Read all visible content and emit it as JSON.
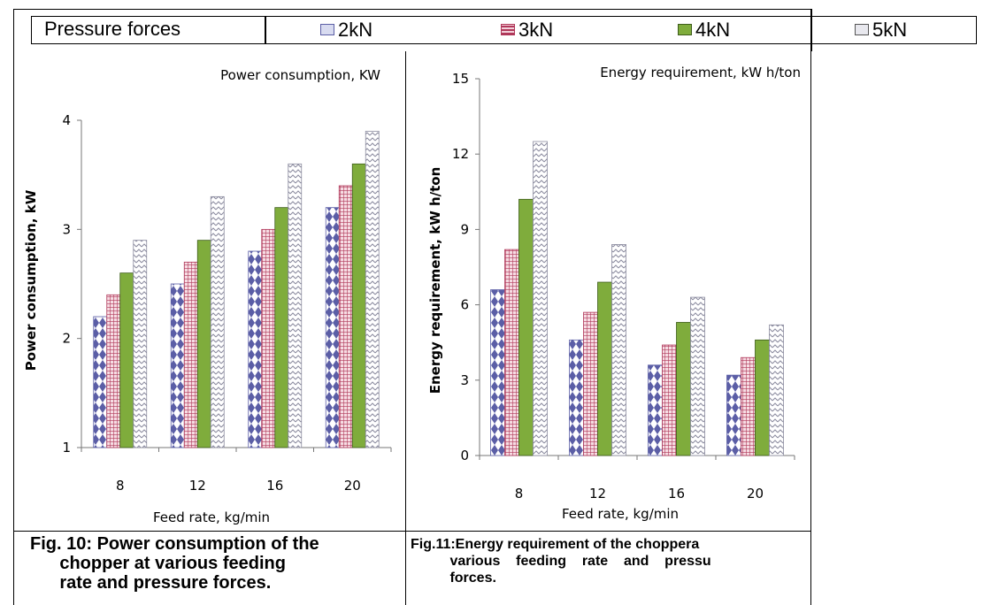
{
  "legend": {
    "title": "Pressure forces",
    "items": [
      {
        "label": "2kN",
        "color": "#5b5ea6",
        "pattern": "diamond"
      },
      {
        "label": "3kN",
        "color": "#b0385a",
        "pattern": "grid"
      },
      {
        "label": "4kN",
        "color": "#7fac3c",
        "pattern": "solid"
      },
      {
        "label": "5kN",
        "color": "#8a8a9e",
        "pattern": "zigzag"
      }
    ]
  },
  "chart_data": [
    {
      "type": "bar",
      "title": "Power consumption, KW",
      "xlabel": "Feed rate, kg/min",
      "ylabel": "Power consumption, kW",
      "categories": [
        "8",
        "12",
        "16",
        "20"
      ],
      "yticks": [
        "1",
        "2",
        "3",
        "4"
      ],
      "ylim": [
        1,
        4
      ],
      "series": [
        {
          "name": "2kN",
          "values": [
            2.2,
            2.5,
            2.8,
            3.2
          ]
        },
        {
          "name": "3kN",
          "values": [
            2.4,
            2.7,
            3.0,
            3.4
          ]
        },
        {
          "name": "4kN",
          "values": [
            2.6,
            2.9,
            3.2,
            3.6
          ]
        },
        {
          "name": "5kN",
          "values": [
            2.9,
            3.3,
            3.6,
            3.9
          ]
        }
      ]
    },
    {
      "type": "bar",
      "title": "Energy requirement, kW h/ton",
      "xlabel": "Feed rate, kg/min",
      "ylabel": "Energy requirement, kW h/ton",
      "categories": [
        "8",
        "12",
        "16",
        "20"
      ],
      "yticks": [
        "0",
        "3",
        "6",
        "9",
        "12",
        "15"
      ],
      "ylim": [
        0,
        15
      ],
      "series": [
        {
          "name": "2kN",
          "values": [
            6.6,
            4.6,
            3.6,
            3.2
          ]
        },
        {
          "name": "3kN",
          "values": [
            8.2,
            5.7,
            4.4,
            3.9
          ]
        },
        {
          "name": "4kN",
          "values": [
            10.2,
            6.9,
            5.3,
            4.6
          ]
        },
        {
          "name": "5kN",
          "values": [
            12.5,
            8.4,
            6.3,
            5.2
          ]
        }
      ]
    }
  ],
  "captions": {
    "fig10": "Fig. 10: Power consumption of the\n      chopper at various feeding\n      rate and pressure forces.",
    "fig11": "Fig.11:Energy requirement of the choppera\n          various    feeding    rate    and    pressu\n          forces."
  }
}
